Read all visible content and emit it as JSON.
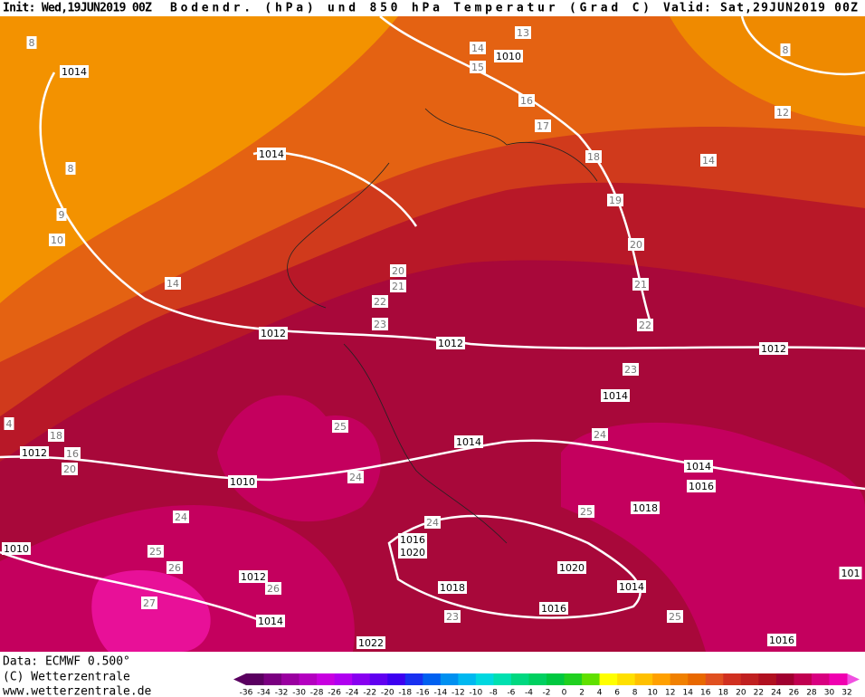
{
  "header": {
    "init": "Init: Wed,19JUN2019 00Z",
    "title": "Bodendr. (hPa) und 850 hPa Temperatur (Grad C)",
    "valid": "Valid: Sat,29JUN2019 00Z"
  },
  "footer": {
    "data": "Data: ECMWF  0.500°",
    "copyright": "(C) Wetterzentrale",
    "url": "www.wetterzentrale.de"
  },
  "colorbar": {
    "ticks": [
      -36,
      -34,
      -32,
      -30,
      -28,
      -26,
      -24,
      -22,
      -20,
      -18,
      -16,
      -14,
      -12,
      -10,
      -8,
      -6,
      -4,
      -2,
      0,
      2,
      4,
      6,
      8,
      10,
      12,
      14,
      16,
      18,
      20,
      22,
      24,
      26,
      28,
      30,
      32
    ],
    "colors": [
      "#5a0060",
      "#7a0080",
      "#9a00a0",
      "#b400c0",
      "#c800e0",
      "#b000f0",
      "#8800f0",
      "#6000f0",
      "#3c00f0",
      "#1830f0",
      "#0060f0",
      "#0090f0",
      "#00b8f0",
      "#00d8e0",
      "#00e0b0",
      "#00d880",
      "#00d060",
      "#00c840",
      "#20d020",
      "#60e000",
      "#ffff00",
      "#ffe000",
      "#ffc000",
      "#ffa000",
      "#f08000",
      "#e86800",
      "#e05020",
      "#d03020",
      "#c02020",
      "#b01020",
      "#a00030",
      "#c00050",
      "#d80080",
      "#f000b0"
    ]
  },
  "contour_labels": [
    "14",
    "13",
    "1010",
    "15",
    "16",
    "17",
    "18",
    "19",
    "20",
    "21",
    "22",
    "23",
    "1014",
    "24",
    "1014",
    "1016",
    "1018",
    "25",
    "1020",
    "1014",
    "1016",
    "25",
    "1016",
    "101",
    "1012",
    "14",
    "12",
    "8",
    "8",
    "1014",
    "8",
    "9",
    "10",
    "14",
    "1014",
    "20",
    "21",
    "22",
    "23",
    "1012",
    "1012",
    "25",
    "1014",
    "24",
    "1010",
    "24",
    "24",
    "25",
    "26",
    "1012",
    "26",
    "27",
    "1014",
    "1010",
    "1012",
    "18",
    "16",
    "20",
    "1016",
    "1020",
    "1018",
    "23",
    "1022",
    "4"
  ]
}
